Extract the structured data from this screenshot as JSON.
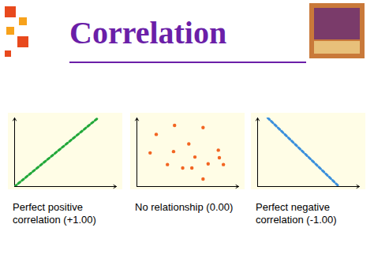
{
  "title": "Correlation",
  "chart_data": [
    {
      "type": "line",
      "title": "Perfect positive correlation (+1.00)",
      "x": [
        0,
        8.2
      ],
      "values": [
        0,
        10
      ],
      "color": "#22a83a",
      "line_style": "dotted",
      "xlim": [
        0,
        10
      ],
      "ylim": [
        0,
        10
      ],
      "tick_labels": false
    },
    {
      "type": "scatter",
      "title": "No relationship (0.00)",
      "x": [
        3.7,
        6.5,
        1.9,
        5.1,
        1.3,
        3.6,
        8.0,
        8.1,
        3.0,
        5.7,
        4.5,
        5.4,
        7.0,
        8.5,
        6.5
      ],
      "values": [
        8.9,
        8.6,
        7.6,
        6.2,
        4.9,
        5.1,
        5.3,
        4.2,
        3.2,
        4.3,
        2.7,
        2.7,
        3.3,
        3.2,
        1.1
      ],
      "color": "#f26522",
      "marker": "circle",
      "xlim": [
        0,
        10
      ],
      "ylim": [
        0,
        10
      ],
      "tick_labels": false
    },
    {
      "type": "line",
      "title": "Perfect negative correlation (-1.00)",
      "x": [
        1,
        8
      ],
      "values": [
        10,
        0
      ],
      "color": "#3a8fdc",
      "line_style": "dotted",
      "xlim": [
        0,
        10
      ],
      "ylim": [
        0,
        10
      ],
      "tick_labels": false
    }
  ]
}
